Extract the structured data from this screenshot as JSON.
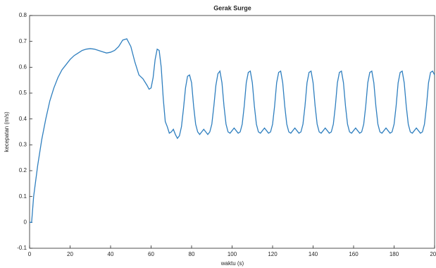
{
  "chart_data": {
    "type": "line",
    "title": "Gerak Surge",
    "xlabel": "waktu (s)",
    "ylabel": "kecepatan (m/s)",
    "x": [
      0,
      1,
      2,
      4,
      6,
      8,
      10,
      12,
      14,
      16,
      18,
      20,
      22,
      24,
      26,
      28,
      30,
      32,
      34,
      36,
      38,
      40,
      42,
      44,
      46,
      48,
      50,
      52,
      54,
      56,
      58,
      59,
      60,
      61,
      62,
      63,
      64,
      65,
      66,
      67,
      68,
      69,
      70,
      71,
      72,
      73,
      74,
      75,
      76,
      77,
      78,
      79,
      80,
      81,
      82,
      83,
      84,
      85,
      86,
      87,
      88,
      89,
      90,
      91,
      92,
      93,
      94,
      95,
      96,
      97,
      98,
      99,
      100,
      101,
      102,
      103,
      104,
      105,
      106,
      107,
      108,
      109,
      110,
      111,
      112,
      113,
      114,
      115,
      116,
      117,
      118,
      119,
      120,
      121,
      122,
      123,
      124,
      125,
      126,
      127,
      128,
      129,
      130,
      131,
      132,
      133,
      134,
      135,
      136,
      137,
      138,
      139,
      140,
      141,
      142,
      143,
      144,
      145,
      146,
      147,
      148,
      149,
      150,
      151,
      152,
      153,
      154,
      155,
      156,
      157,
      158,
      159,
      160,
      161,
      162,
      163,
      164,
      165,
      166,
      167,
      168,
      169,
      170,
      171,
      172,
      173,
      174,
      175,
      176,
      177,
      178,
      179,
      180,
      181,
      182,
      183,
      184,
      185,
      186,
      187,
      188,
      189,
      190,
      191,
      192,
      193,
      194,
      195,
      196,
      197,
      198,
      199,
      200
    ],
    "series": [
      {
        "name": "kecepatan",
        "color": "#2f7fbf",
        "values": [
          0,
          0,
          0.1,
          0.22,
          0.32,
          0.4,
          0.47,
          0.52,
          0.56,
          0.59,
          0.61,
          0.63,
          0.645,
          0.655,
          0.665,
          0.67,
          0.672,
          0.67,
          0.665,
          0.66,
          0.655,
          0.658,
          0.665,
          0.68,
          0.705,
          0.71,
          0.68,
          0.62,
          0.57,
          0.555,
          0.53,
          0.515,
          0.52,
          0.56,
          0.63,
          0.67,
          0.665,
          0.6,
          0.48,
          0.39,
          0.37,
          0.345,
          0.35,
          0.36,
          0.34,
          0.325,
          0.335,
          0.37,
          0.44,
          0.52,
          0.565,
          0.57,
          0.54,
          0.45,
          0.38,
          0.35,
          0.34,
          0.35,
          0.36,
          0.35,
          0.34,
          0.35,
          0.38,
          0.45,
          0.53,
          0.575,
          0.585,
          0.54,
          0.45,
          0.38,
          0.35,
          0.345,
          0.355,
          0.365,
          0.355,
          0.345,
          0.35,
          0.38,
          0.45,
          0.54,
          0.58,
          0.585,
          0.54,
          0.45,
          0.38,
          0.35,
          0.345,
          0.355,
          0.365,
          0.355,
          0.345,
          0.35,
          0.38,
          0.45,
          0.54,
          0.58,
          0.585,
          0.54,
          0.45,
          0.38,
          0.35,
          0.345,
          0.355,
          0.365,
          0.355,
          0.345,
          0.35,
          0.38,
          0.45,
          0.54,
          0.58,
          0.585,
          0.54,
          0.45,
          0.38,
          0.35,
          0.345,
          0.355,
          0.365,
          0.355,
          0.345,
          0.35,
          0.38,
          0.45,
          0.54,
          0.58,
          0.585,
          0.54,
          0.45,
          0.38,
          0.35,
          0.345,
          0.355,
          0.365,
          0.355,
          0.345,
          0.35,
          0.38,
          0.45,
          0.54,
          0.58,
          0.585,
          0.54,
          0.45,
          0.38,
          0.35,
          0.345,
          0.355,
          0.365,
          0.355,
          0.345,
          0.35,
          0.38,
          0.45,
          0.54,
          0.58,
          0.585,
          0.54,
          0.45,
          0.38,
          0.35,
          0.345,
          0.355,
          0.365,
          0.355,
          0.345,
          0.35,
          0.38,
          0.45,
          0.54,
          0.58,
          0.585,
          0.57
        ]
      }
    ],
    "xlim": [
      0,
      200
    ],
    "xticks": [
      0,
      20,
      40,
      60,
      80,
      100,
      120,
      140,
      160,
      180,
      200
    ],
    "ylim": [
      -0.1,
      0.8
    ],
    "yticks": [
      -0.1,
      0,
      0.1,
      0.2,
      0.3,
      0.4,
      0.5,
      0.6,
      0.7,
      0.8
    ]
  }
}
